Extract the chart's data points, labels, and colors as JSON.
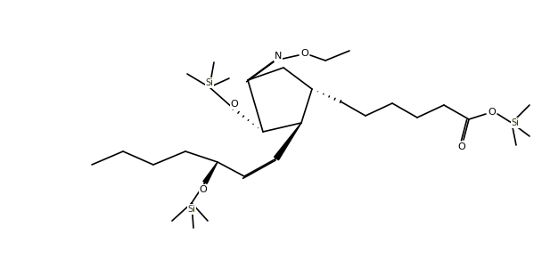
{
  "bg": "#ffffff",
  "bc": "#000000",
  "figsize": [
    6.08,
    3.01
  ],
  "dpi": 100,
  "xlim": [
    0,
    608
  ],
  "ylim": [
    0,
    301
  ]
}
